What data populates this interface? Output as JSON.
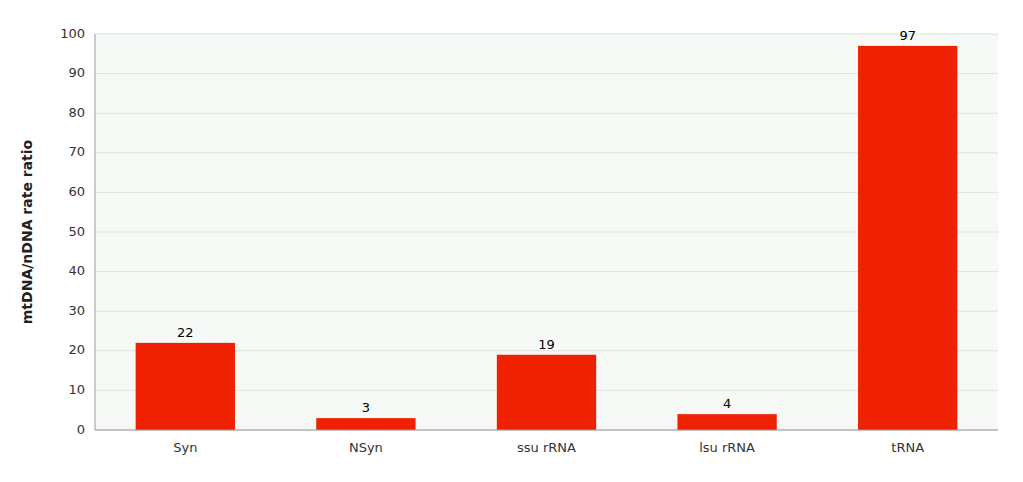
{
  "chart_data": {
    "type": "bar",
    "categories": [
      "Syn",
      "NSyn",
      "ssu rRNA",
      "lsu rRNA",
      "tRNA"
    ],
    "values": [
      22,
      3,
      19,
      4,
      97
    ],
    "color": "#EE2200",
    "ylabel": "mtDNA/nDNA rate ratio",
    "ylim": [
      0,
      100
    ],
    "yticks": [
      0,
      10,
      20,
      30,
      40,
      50,
      60,
      70,
      80,
      90,
      100
    ],
    "grid": true,
    "data_labels": true
  }
}
